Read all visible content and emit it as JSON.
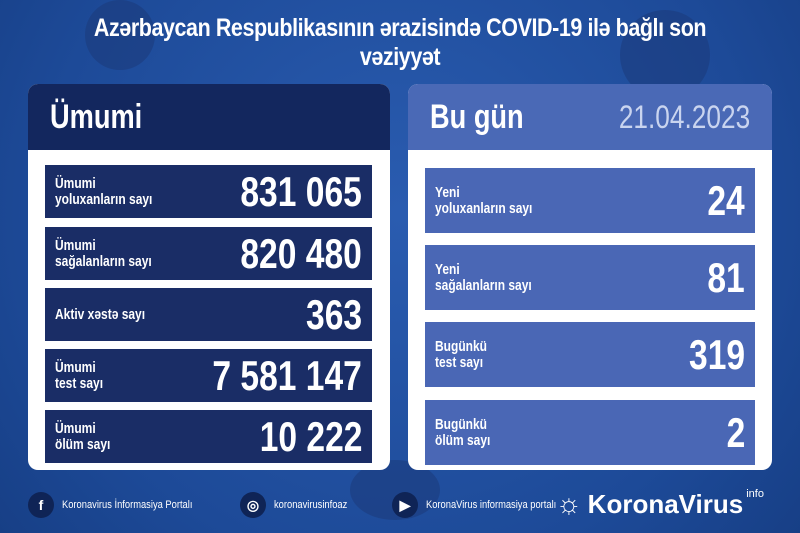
{
  "title": "Azərbaycan Respublikasının ərazisində COVID-19 ilə bağlı son vəziyyət",
  "total": {
    "heading": "Ümumi",
    "rows": [
      {
        "label": "Ümumi\nyoluxanların sayı",
        "value": "831 065"
      },
      {
        "label": "Ümumi\nsağalanların sayı",
        "value": "820 480"
      },
      {
        "label": "Aktiv xəstə sayı",
        "value": "363"
      },
      {
        "label": "Ümumi\ntest sayı",
        "value": "7 581 147"
      },
      {
        "label": "Ümumi\nölüm sayı",
        "value": "10 222"
      }
    ]
  },
  "today": {
    "heading": "Bu gün",
    "date": "21.04.2023",
    "rows": [
      {
        "label": "Yeni\nyoluxanların sayı",
        "value": "24"
      },
      {
        "label": "Yeni\nsağalanların sayı",
        "value": "81"
      },
      {
        "label": "Bugünkü\ntest sayı",
        "value": "319"
      },
      {
        "label": "Bugünkü\nölüm sayı",
        "value": "2"
      }
    ]
  },
  "footer": {
    "facebook": "Koronavirus İnformasiya Portalı",
    "instagram": "koronavirusinfoaz",
    "youtube": "KoronaVirus informasiya portalı",
    "brand": "KoronaVirus",
    "brand_sup": "info"
  },
  "colors": {
    "background": "#1f4fa0",
    "left_header": "#13275e",
    "left_rows": "#1a2d66",
    "right_header": "#4a69b6",
    "right_rows": "#4a67b5"
  }
}
